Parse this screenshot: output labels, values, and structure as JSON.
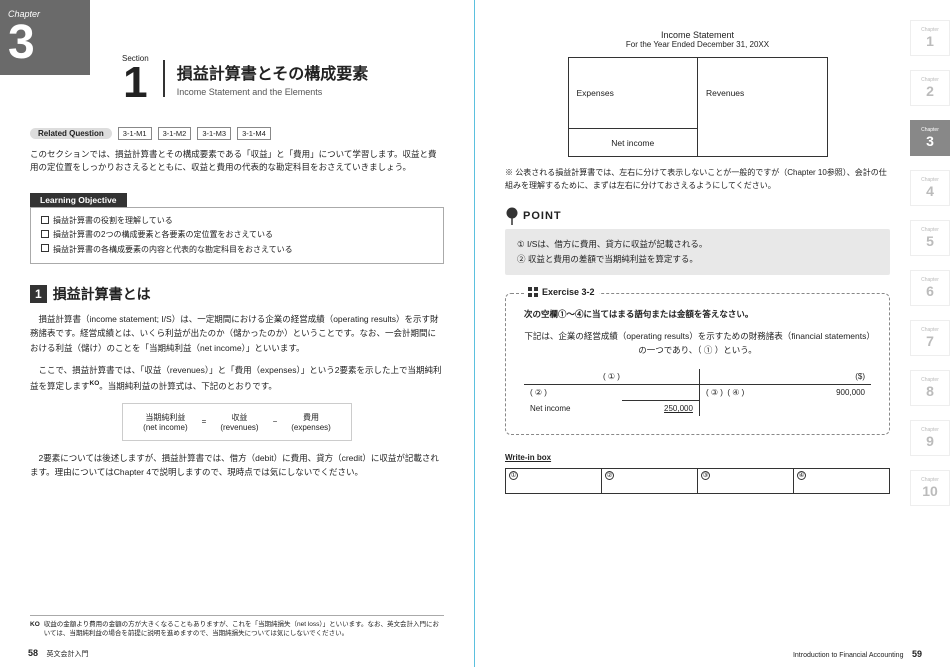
{
  "chapterTab": {
    "label": "Chapter",
    "number": "3"
  },
  "section": {
    "label": "Section",
    "number": "1",
    "mainTitle": "損益計算書とその構成要素",
    "subTitle": "Income Statement and the Elements"
  },
  "related": {
    "label": "Related Question",
    "tags": [
      "3-1-M1",
      "3-1-M2",
      "3-1-M3",
      "3-1-M4"
    ]
  },
  "intro": "このセクションでは、損益計算書とその構成要素である「収益」と「費用」について学習します。収益と費用の定位置をしっかりおさえるとともに、収益と費用の代表的な勘定科目をおさえていきましょう。",
  "learningObjective": {
    "header": "Learning Objective",
    "items": [
      "損益計算書の役割を理解している",
      "損益計算書の2つの構成要素と各要素の定位置をおさえている",
      "損益計算書の各構成要素の内容と代表的な勘定科目をおさえている"
    ]
  },
  "h1": {
    "number": "1",
    "text": "損益計算書とは"
  },
  "para1": "損益計算書（income statement; I/S）は、一定期間における企業の経営成績（operating results）を示す財務諸表です。経営成績とは、いくら利益が出たのか（儲かったのか）ということです。なお、一会計期間における利益（儲け）のことを「当期純利益（net income）」といいます。",
  "para2_a": "ここで、損益計算書では、「収益（revenues）」と「費用（expenses）」という2要素を示した上で当期純利益を算定します",
  "para2_sup": "KO",
  "para2_b": "。当期純利益の計算式は、下記のとおりです。",
  "equation": {
    "left_jp": "当期純利益",
    "left_en": "(net income)",
    "eq": "=",
    "mid_jp": "収益",
    "mid_en": "(revenues)",
    "minus": "−",
    "right_jp": "費用",
    "right_en": "(expenses)"
  },
  "para3": "2要素については後述しますが、損益計算書では、借方（debit）に費用、貸方（credit）に収益が記載されます。理由についてはChapter 4で説明しますので、現時点では気にしないでください。",
  "footnote": {
    "mark": "KO",
    "text": "収益の金額より費用の金額の方が大きくなることもありますが、これを「当期純損失（net loss）」といいます。なお、英文会計入門においては、当期純利益の場合を前提に説明を進めますので、当期純損失については気にしないでください。"
  },
  "leftPageNum": "58",
  "leftBookTitle": "英文会計入門",
  "diagram": {
    "title": "Income Statement",
    "subtitle": "For the Year Ended December 31, 20XX",
    "expenses": "Expenses",
    "revenues": "Revenues",
    "netincome": "Net income"
  },
  "noteRight": "※ 公表される損益計算書では、左右に分けて表示しないことが一般的ですが（Chapter 10参照）、会計の仕組みを理解するために、まずは左右に分けておさえるようにしてください。",
  "point": {
    "label": "POINT",
    "items": [
      "① I/Sは、借方に費用、貸方に収益が記載される。",
      "② 収益と費用の差額で当期純利益を算定する。"
    ]
  },
  "exercise": {
    "label": "Exercise 3-2",
    "instruction": "次の空欄①〜④に当てはまる語句または金額を答えなさい。",
    "body": "下記は、企業の経営成績（operating results）を示すための財務諸表（financial statements）の一つであり、（ ① ）という。",
    "table": {
      "head_left": "( ① )",
      "head_right": "($)",
      "r1c1": "( ② )",
      "r1c3": "( ③ )",
      "r1c4": "( ④ )",
      "r1c5": "900,000",
      "r2c1": "Net income",
      "r2c2": "250,000"
    }
  },
  "writein": {
    "label": "Write-in box",
    "cells": [
      "①",
      "②",
      "③",
      "④"
    ]
  },
  "rightPageNum": "59",
  "rightBookTitle": "Introduction to Financial Accounting",
  "sideTabs": {
    "label": "Chapter",
    "items": [
      "1",
      "2",
      "3",
      "4",
      "5",
      "6",
      "7",
      "8",
      "9",
      "10"
    ],
    "active": "3"
  }
}
